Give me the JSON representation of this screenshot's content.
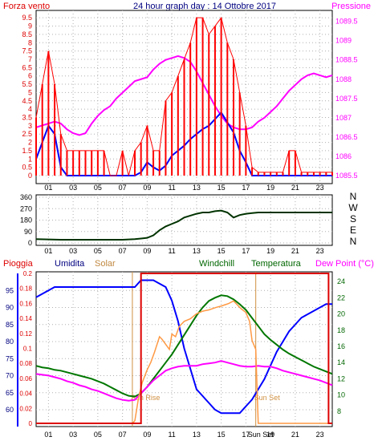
{
  "colors": {
    "background": "#ffffff",
    "frame": "#000000",
    "grid": "#b0b0b0",
    "wind": "#ff0000",
    "wind_avg": "#0000ff",
    "pressure": "#ff00ff",
    "direction": "#003300",
    "humidity": "#0000ff",
    "temperature": "#007700",
    "dewpoint": "#ff00ff",
    "solar": "#ff9944",
    "rain": "#dd0000",
    "sun_marker": "#d09040",
    "windchill": "#006600"
  },
  "header": {
    "left": "Forza vento",
    "title": "24 hour graph day : 14 Ottobre 2017",
    "right": "Pressione"
  },
  "legend": {
    "rain": "Pioggia",
    "humidity": "Umidita",
    "solar": "Solar",
    "windchill": "Windchill",
    "temperature": "Temperatura",
    "dewpoint": "Dew Point (°C)"
  },
  "x_ticks": [
    "01",
    "03",
    "05",
    "07",
    "09",
    "11",
    "13",
    "15",
    "17",
    "Sun Set",
    "19",
    "21",
    "23"
  ],
  "chart_data": [
    {
      "type": "line",
      "title": "24 hour graph day : 14 Ottobre 2017",
      "x_range": [
        0,
        24
      ],
      "ylabel_left": "Forza vento",
      "ylabel_right": "Pressione",
      "left_ticks": [
        "0",
        "0.5",
        "1",
        "1.5",
        "2",
        "2.5",
        "3",
        "3.5",
        "4",
        "4.5",
        "5",
        "5.5",
        "6",
        "6.5",
        "7",
        "7.5",
        "8",
        "8.5",
        "9",
        "9.5"
      ],
      "right_ticks": [
        "1085.5",
        "1086",
        "1086.5",
        "1087",
        "1087.5",
        "1088",
        "1088.5",
        "1089",
        "1089.5"
      ],
      "left_range": [
        0,
        9.75
      ],
      "right_range": [
        1085.5,
        1089.7
      ],
      "series": [
        {
          "role": "pressure",
          "axis": "right",
          "x": [
            0,
            0.5,
            1,
            1.5,
            2,
            2.5,
            3,
            3.5,
            4,
            4.5,
            5,
            5.5,
            6,
            6.5,
            7,
            7.5,
            8,
            8.5,
            9,
            9.5,
            10,
            10.5,
            11,
            11.5,
            12,
            12.5,
            13,
            13.5,
            14,
            14.5,
            15,
            15.5,
            16,
            16.5,
            17,
            17.5,
            18,
            18.5,
            19,
            19.5,
            20,
            20.5,
            21,
            21.5,
            22,
            22.5,
            23,
            23.5,
            24
          ],
          "values": [
            1086.75,
            1086.8,
            1086.85,
            1086.9,
            1086.85,
            1086.7,
            1086.6,
            1086.55,
            1086.6,
            1086.85,
            1087.05,
            1087.2,
            1087.3,
            1087.5,
            1087.65,
            1087.8,
            1087.95,
            1088.0,
            1088.05,
            1088.25,
            1088.4,
            1088.5,
            1088.55,
            1088.6,
            1088.55,
            1088.45,
            1088.2,
            1087.9,
            1087.6,
            1087.3,
            1087.05,
            1086.85,
            1086.75,
            1086.7,
            1086.7,
            1086.75,
            1086.9,
            1087.0,
            1087.15,
            1087.3,
            1087.5,
            1087.7,
            1087.85,
            1088.0,
            1088.1,
            1088.15,
            1088.1,
            1088.05,
            1088.1
          ]
        },
        {
          "role": "wind_avg",
          "axis": "left",
          "x": [
            0,
            0.5,
            1,
            1.5,
            2,
            2.5,
            3,
            3.5,
            4,
            4.5,
            5,
            5.5,
            6,
            6.5,
            7,
            7.5,
            8,
            8.5,
            9,
            9.5,
            10,
            10.5,
            11,
            11.5,
            12,
            12.5,
            13,
            13.5,
            14,
            14.5,
            15,
            15.5,
            16,
            16.5,
            17,
            17.5,
            18,
            18.5,
            19,
            19.5,
            20,
            20.5,
            21,
            21.5,
            22,
            22.5,
            23,
            23.5,
            24
          ],
          "values": [
            1.0,
            2.0,
            3.0,
            2.5,
            0.5,
            0,
            0,
            0,
            0,
            0,
            0,
            0,
            0,
            0,
            0,
            0,
            0,
            0.2,
            0.8,
            0.5,
            0.3,
            0.6,
            1.2,
            1.5,
            1.8,
            2.2,
            2.5,
            2.8,
            3.0,
            3.4,
            3.8,
            3.2,
            2.6,
            1.5,
            0.8,
            0,
            0,
            0,
            0,
            0,
            0,
            0,
            0,
            0,
            0,
            0,
            0,
            0,
            0
          ]
        },
        {
          "role": "wind_gust",
          "axis": "left",
          "style": "bars",
          "x": [
            0,
            0.5,
            1,
            1.5,
            2,
            2.5,
            3,
            3.5,
            4,
            4.5,
            5,
            5.5,
            6,
            6.5,
            7,
            7.5,
            8,
            8.5,
            9,
            9.5,
            10,
            10.5,
            11,
            11.5,
            12,
            12.5,
            13,
            13.5,
            14,
            14.5,
            15,
            15.5,
            16,
            16.5,
            17,
            17.5,
            18,
            18.5,
            19,
            19.5,
            20,
            20.5,
            21,
            21.5,
            22,
            22.5,
            23,
            23.5,
            24
          ],
          "values": [
            3.5,
            5.5,
            7.5,
            5.5,
            2.5,
            1.5,
            1.5,
            1.5,
            1.5,
            1.5,
            1.5,
            1.5,
            0,
            0,
            1.5,
            0,
            1.5,
            2.0,
            3.0,
            1.5,
            1.5,
            4.5,
            5.0,
            6.0,
            7.0,
            8.0,
            9.5,
            9.5,
            8.5,
            9.0,
            9.5,
            8.0,
            7.0,
            5.0,
            3.0,
            0.5,
            0.2,
            0.2,
            0.2,
            0.2,
            0.2,
            1.5,
            1.5,
            0.2,
            0.2,
            0.2,
            0.2,
            0.2,
            0.2
          ]
        }
      ]
    },
    {
      "type": "line",
      "x_range": [
        0,
        24
      ],
      "right_axis_labels": [
        "N",
        "W",
        "S",
        "E",
        "N"
      ],
      "left_ticks": [
        "0",
        "90",
        "180",
        "270",
        "360"
      ],
      "y_range": [
        0,
        360
      ],
      "series": [
        {
          "role": "direction",
          "x": [
            0,
            1,
            2,
            3,
            4,
            5,
            6,
            7,
            8,
            8.5,
            9,
            9.5,
            10,
            10.5,
            11,
            11.5,
            12,
            12.5,
            13,
            13.5,
            14,
            14.5,
            15,
            15.5,
            16,
            16.5,
            17,
            17.5,
            18,
            19,
            20,
            21,
            22,
            23,
            24
          ],
          "values": [
            30,
            28,
            25,
            25,
            25,
            25,
            25,
            25,
            30,
            35,
            40,
            60,
            100,
            130,
            150,
            170,
            200,
            215,
            230,
            240,
            240,
            250,
            255,
            240,
            200,
            220,
            230,
            235,
            240,
            240,
            240,
            240,
            240,
            240,
            240
          ]
        }
      ]
    },
    {
      "type": "line",
      "x_range": [
        0,
        24
      ],
      "legend": [
        "Pioggia",
        "Umidita",
        "Solar",
        "Windchill",
        "Temperatura",
        "Dew Point (°C)"
      ],
      "rain_ticks": [
        "0",
        "0.02",
        "0.04",
        "0.06",
        "0.08",
        "0.1",
        "0.12",
        "0.14",
        "0.16",
        "0.18",
        "0.2"
      ],
      "humidity_ticks": [
        "60",
        "65",
        "70",
        "75",
        "80",
        "85",
        "90",
        "95"
      ],
      "temperature_ticks": [
        "8",
        "10",
        "12",
        "14",
        "16",
        "18",
        "20",
        "22",
        "24"
      ],
      "humidity_range": [
        56,
        100
      ],
      "temperature_range": [
        6.5,
        25
      ],
      "solar_range": [
        0,
        1000
      ],
      "rain_range": [
        0,
        0.2
      ],
      "annotations": {
        "sunrise": "Sun Rise",
        "sunset": "Sun Set",
        "sunrise_hour": 7.8,
        "sunset_hour": 17.8
      },
      "series": [
        {
          "role": "humidity",
          "axis": "humidity",
          "x": [
            0,
            0.5,
            1,
            1.5,
            2,
            3,
            4,
            5,
            6,
            7,
            8,
            8.5,
            9,
            9.5,
            10,
            10.5,
            11,
            11.5,
            12,
            12.5,
            13,
            13.5,
            14,
            14.5,
            15,
            15.5,
            16,
            16.5,
            17,
            17.5,
            18,
            18.5,
            19,
            19.5,
            20,
            20.5,
            21,
            21.5,
            22,
            22.5,
            23,
            23.5,
            24
          ],
          "values": [
            93,
            94,
            95,
            96,
            96,
            96,
            96,
            96,
            96,
            96,
            96,
            98,
            98,
            98,
            97,
            96,
            92,
            86,
            78,
            72,
            66,
            64,
            62,
            60,
            59,
            59,
            59,
            59,
            61,
            63,
            66,
            69,
            73,
            77,
            80,
            83,
            85,
            87,
            88,
            89,
            90,
            91,
            91
          ]
        },
        {
          "role": "temperature",
          "axis": "temperature",
          "x": [
            0,
            0.5,
            1,
            1.5,
            2,
            2.5,
            3,
            3.5,
            4,
            4.5,
            5,
            5.5,
            6,
            6.5,
            7,
            7.5,
            8,
            8.5,
            9,
            9.5,
            10,
            10.5,
            11,
            11.5,
            12,
            12.5,
            13,
            13.5,
            14,
            14.5,
            15,
            15.5,
            16,
            16.5,
            17,
            17.5,
            18,
            18.5,
            19,
            19.5,
            20,
            20.5,
            21,
            21.5,
            22,
            22.5,
            23,
            23.5,
            24
          ],
          "values": [
            13.6,
            13.4,
            13.3,
            13.1,
            13.0,
            12.8,
            12.6,
            12.4,
            12.2,
            12.0,
            11.7,
            11.4,
            11.0,
            10.6,
            10.2,
            9.9,
            9.8,
            10.2,
            11.0,
            12.0,
            13.0,
            14.0,
            15.0,
            16.2,
            17.4,
            18.6,
            19.8,
            20.8,
            21.6,
            22.0,
            22.3,
            22.2,
            21.8,
            21.2,
            20.5,
            19.5,
            18.5,
            17.5,
            16.8,
            16.2,
            15.6,
            15.1,
            14.7,
            14.3,
            13.9,
            13.5,
            13.2,
            12.9,
            12.6
          ]
        },
        {
          "role": "dewpoint",
          "axis": "temperature",
          "x": [
            0,
            0.5,
            1,
            1.5,
            2,
            2.5,
            3,
            3.5,
            4,
            4.5,
            5,
            5.5,
            6,
            6.5,
            7,
            7.5,
            8,
            8.5,
            9,
            9.5,
            10,
            10.5,
            11,
            11.5,
            12,
            12.5,
            13,
            13.5,
            14,
            14.5,
            15,
            15.5,
            16,
            16.5,
            17,
            17.5,
            18,
            18.5,
            19,
            19.5,
            20,
            20.5,
            21,
            21.5,
            22,
            22.5,
            23,
            23.5,
            24
          ],
          "values": [
            12.6,
            12.5,
            12.4,
            12.2,
            12.0,
            11.7,
            11.5,
            11.2,
            11.0,
            10.7,
            10.5,
            10.2,
            9.9,
            9.6,
            9.4,
            9.3,
            9.4,
            10.2,
            11.0,
            11.8,
            12.4,
            13.0,
            13.3,
            13.5,
            13.6,
            13.6,
            13.6,
            13.8,
            13.9,
            14.0,
            14.2,
            14.0,
            13.8,
            13.6,
            13.5,
            13.5,
            13.6,
            13.5,
            13.5,
            13.3,
            13.0,
            12.8,
            12.6,
            12.4,
            12.2,
            12.0,
            11.8,
            11.5,
            11.2
          ]
        },
        {
          "role": "solar",
          "axis": "solar",
          "x": [
            0,
            7.8,
            8.0,
            8.3,
            8.6,
            9.0,
            9.3,
            9.6,
            10,
            10.2,
            10.5,
            10.8,
            11,
            11.3,
            11.6,
            12,
            12.5,
            13,
            13.5,
            14,
            14.3,
            14.6,
            15,
            15.3,
            15.6,
            16,
            16.3,
            16.6,
            17,
            17.3,
            17.5,
            17.8,
            18,
            24
          ],
          "values": [
            0,
            0,
            20,
            200,
            320,
            420,
            480,
            560,
            680,
            660,
            620,
            580,
            700,
            680,
            760,
            800,
            820,
            860,
            880,
            890,
            900,
            910,
            920,
            930,
            940,
            960,
            930,
            900,
            870,
            800,
            650,
            580,
            0,
            0
          ]
        },
        {
          "role": "rain",
          "axis": "rain",
          "style": "step",
          "x": [
            0,
            8.5,
            8.5,
            23.7,
            23.7,
            24
          ],
          "values": [
            0,
            0,
            0.2,
            0.2,
            0,
            0
          ]
        }
      ]
    }
  ]
}
